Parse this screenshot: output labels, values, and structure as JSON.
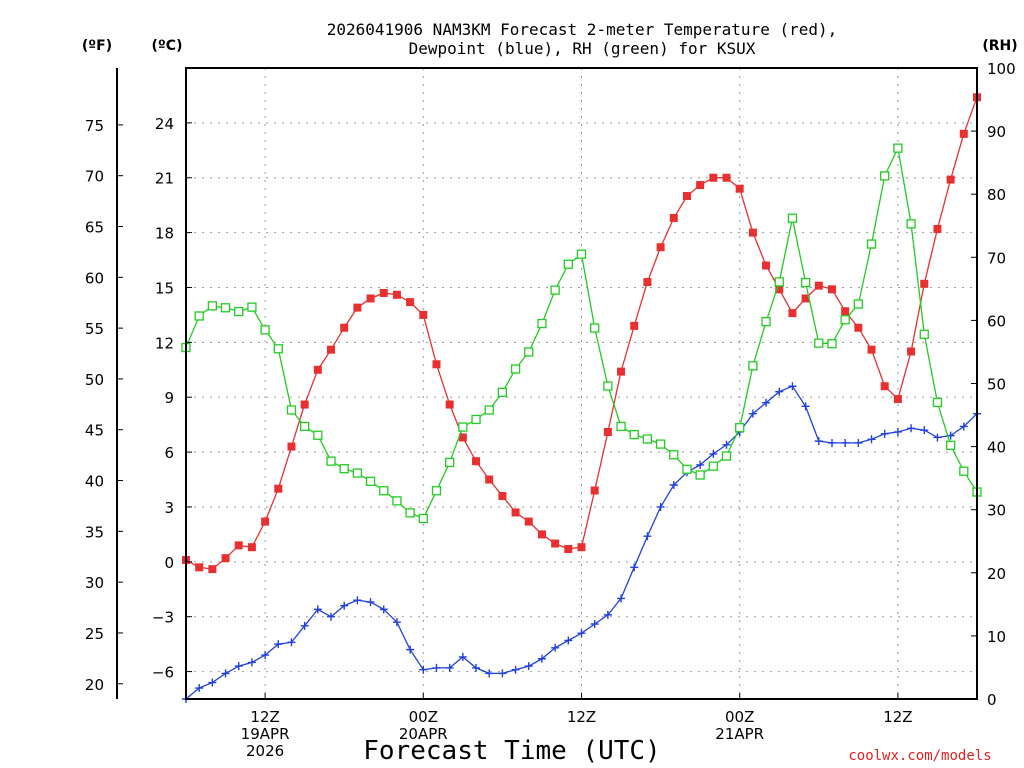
{
  "chart_data": {
    "type": "line",
    "title_line1": "2026041906 NAM3KM Forecast 2-meter Temperature (red),",
    "title_line2": "Dewpoint (blue), RH (green) for KSUX",
    "xlabel": "Forecast Time (UTC)",
    "credit": "coolwx.com/models",
    "left_outer_unit": "(ºF)",
    "left_inner_unit": "(ºC)",
    "right_unit": "(RH)",
    "x_ticks": [
      {
        "hour": 6,
        "lines": [
          "12Z",
          "19APR",
          "2026"
        ]
      },
      {
        "hour": 18,
        "lines": [
          "00Z",
          "20APR"
        ]
      },
      {
        "hour": 30,
        "lines": [
          "12Z"
        ]
      },
      {
        "hour": 42,
        "lines": [
          "00Z",
          "21APR"
        ]
      },
      {
        "hour": 54,
        "lines": [
          "12Z"
        ]
      }
    ],
    "xlim": [
      0,
      60
    ],
    "celsius_ylim": [
      -7.5,
      27
    ],
    "celsius_ticks": [
      -6,
      -3,
      0,
      3,
      6,
      9,
      12,
      15,
      18,
      21,
      24
    ],
    "fahrenheit_ticks": [
      20,
      25,
      30,
      35,
      40,
      45,
      50,
      55,
      60,
      65,
      70,
      75
    ],
    "rh_ylim": [
      0,
      100
    ],
    "rh_ticks": [
      0,
      10,
      20,
      30,
      40,
      50,
      60,
      70,
      80,
      90,
      100
    ],
    "series": [
      {
        "name": "Temperature",
        "unit": "C",
        "color": "#e83030",
        "marker": "filled-square",
        "values": [
          0.1,
          -0.3,
          -0.4,
          0.2,
          0.9,
          0.8,
          2.2,
          4.0,
          6.3,
          8.6,
          10.5,
          11.6,
          12.8,
          13.9,
          14.4,
          14.7,
          14.6,
          14.2,
          13.5,
          10.8,
          8.6,
          6.8,
          5.5,
          4.5,
          3.6,
          2.7,
          2.2,
          1.5,
          1.0,
          0.7,
          0.8,
          3.9,
          7.1,
          10.4,
          12.9,
          15.3,
          17.2,
          18.8,
          20.0,
          20.6,
          21.0,
          21.0,
          20.4,
          18.0,
          16.2,
          14.9,
          13.6,
          14.4,
          15.1,
          14.9,
          13.7,
          12.8,
          11.6,
          9.6,
          8.9,
          11.5,
          15.2,
          18.2,
          20.9,
          23.4,
          25.4
        ]
      },
      {
        "name": "Dewpoint",
        "unit": "C",
        "color": "#2040e0",
        "marker": "plus",
        "values": [
          -7.5,
          -6.9,
          -6.6,
          -6.1,
          -5.7,
          -5.5,
          -5.1,
          -4.5,
          -4.4,
          -3.5,
          -2.6,
          -3.0,
          -2.4,
          -2.1,
          -2.2,
          -2.6,
          -3.3,
          -4.8,
          -5.9,
          -5.8,
          -5.8,
          -5.2,
          -5.8,
          -6.1,
          -6.1,
          -5.9,
          -5.7,
          -5.3,
          -4.7,
          -4.3,
          -3.9,
          -3.4,
          -2.9,
          -2.0,
          -0.3,
          1.4,
          3.0,
          4.2,
          4.9,
          5.3,
          5.9,
          6.4,
          7.1,
          8.1,
          8.7,
          9.3,
          9.6,
          8.5,
          6.6,
          6.5,
          6.5,
          6.5,
          6.7,
          7.0,
          7.1,
          7.3,
          7.2,
          6.8,
          6.9,
          7.4,
          8.1
        ]
      },
      {
        "name": "RH",
        "unit": "%",
        "color": "#22cc22",
        "marker": "open-square",
        "values": [
          55.7,
          60.7,
          62.3,
          62.0,
          61.4,
          62.1,
          58.5,
          55.5,
          45.8,
          43.2,
          41.8,
          37.7,
          36.5,
          35.8,
          34.5,
          33.0,
          31.4,
          29.5,
          28.6,
          33.0,
          37.5,
          43.1,
          44.3,
          45.8,
          48.6,
          52.3,
          55.0,
          59.5,
          64.8,
          68.9,
          70.5,
          58.8,
          49.6,
          43.2,
          41.9,
          41.2,
          40.4,
          38.7,
          36.4,
          35.5,
          36.9,
          38.5,
          43.0,
          52.8,
          59.8,
          66.1,
          76.2,
          66.0,
          56.4,
          56.3,
          60.1,
          62.6,
          72.1,
          82.9,
          87.3,
          75.3,
          57.8,
          47.0,
          40.2,
          36.1,
          32.8
        ]
      }
    ]
  }
}
